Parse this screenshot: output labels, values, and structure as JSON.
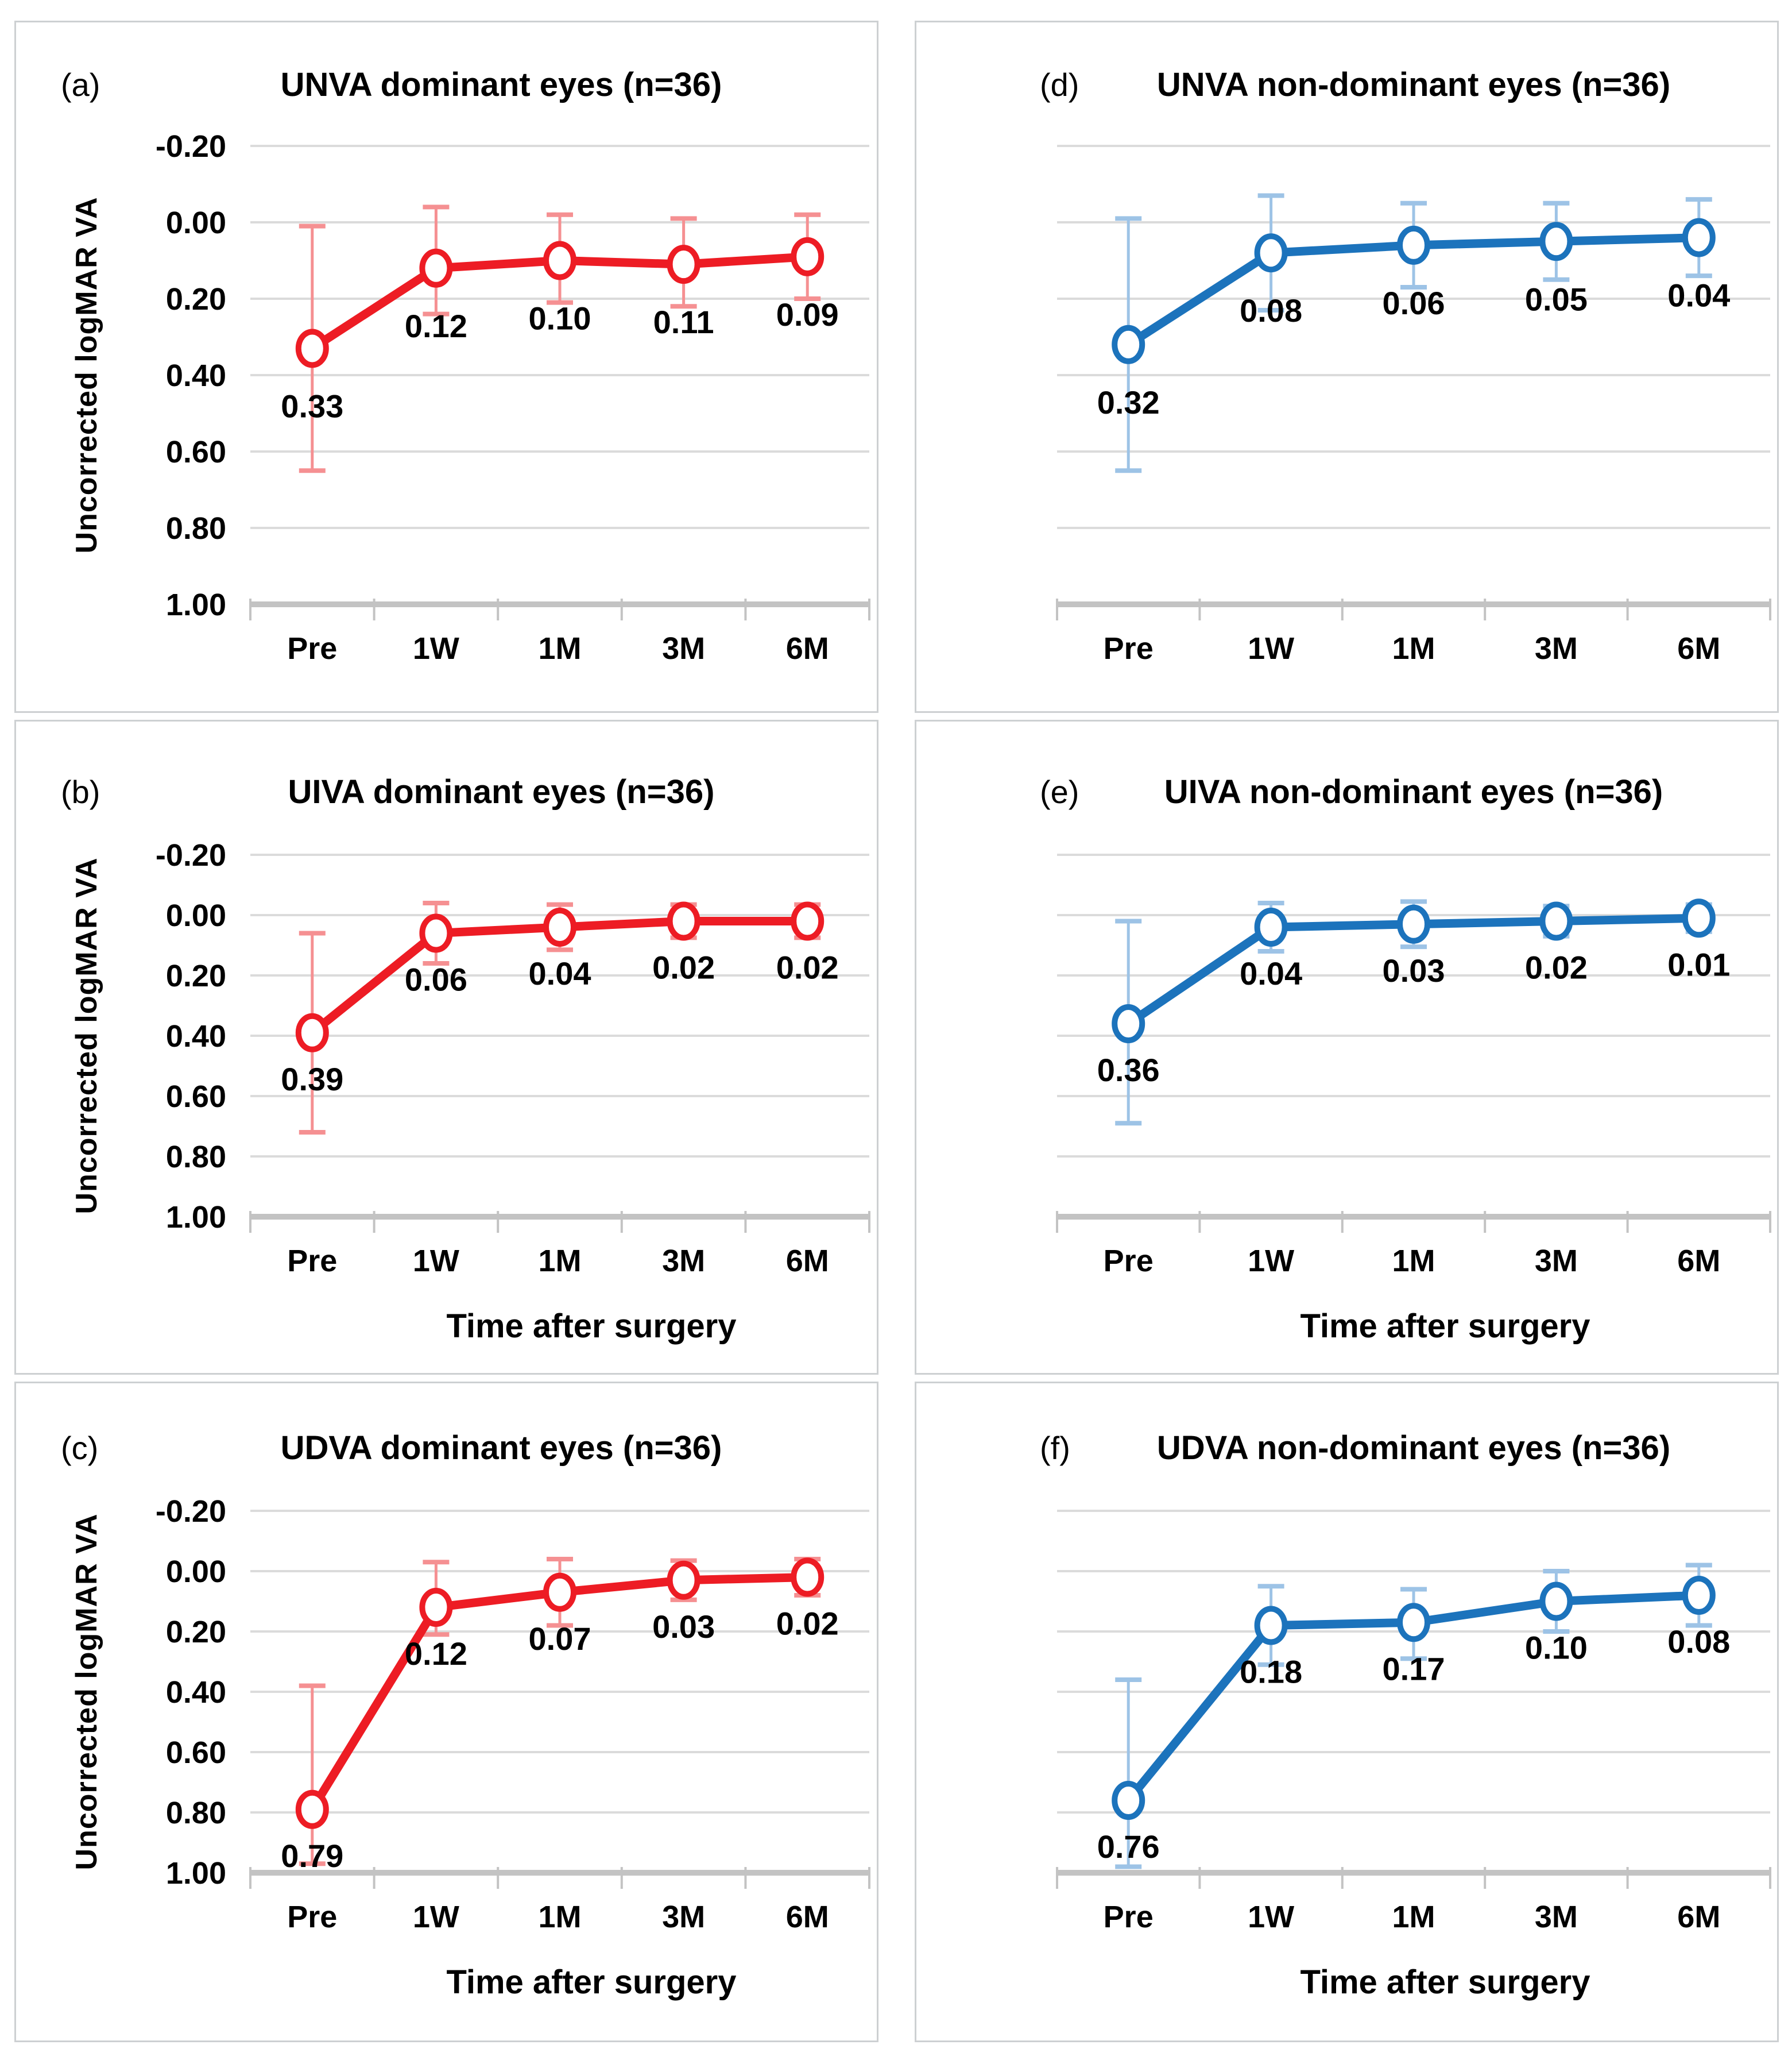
{
  "figure": {
    "y_axis_title": "Uncorrected logMAR VA",
    "x_axis_title": "Time after surgery",
    "categories": [
      "Pre",
      "1W",
      "1M",
      "3M",
      "6M"
    ],
    "y_tick_labels": [
      "-0.20",
      "0.00",
      "0.20",
      "0.40",
      "0.60",
      "0.80",
      "1.00"
    ],
    "colors": {
      "dominant_series": "#ED1C24",
      "dominant_error": "#F59092",
      "nondominant_series": "#1C73BC",
      "nondominant_error": "#9DC3E6",
      "gridline": "#DBDBDB",
      "axis": "#C3C3C3",
      "text": "#000000",
      "panel_border": "#CDD0D2"
    }
  },
  "chart_data": [
    {
      "panel": "(a)",
      "title": "UNVA dominant eyes (n=36)",
      "type": "line",
      "categories": [
        "Pre",
        "1W",
        "1M",
        "3M",
        "6M"
      ],
      "values": [
        0.33,
        0.12,
        0.1,
        0.11,
        0.09
      ],
      "data_labels": [
        "0.33",
        "0.12",
        "0.10",
        "0.11",
        "0.09"
      ],
      "err_up": [
        0.32,
        0.16,
        0.12,
        0.12,
        0.11
      ],
      "err_down": [
        0.32,
        0.12,
        0.11,
        0.11,
        0.11
      ],
      "series_color": "#ED1C24",
      "error_color": "#F59092",
      "ylabel": "Uncorrected logMAR VA",
      "xlabel": "",
      "y_tick_labels": [
        "-0.20",
        "0.00",
        "0.20",
        "0.40",
        "0.60",
        "0.80",
        "1.00"
      ],
      "ylim": [
        -0.2,
        1.0
      ],
      "y_axis_reversed": true,
      "grid": true,
      "legend": "none"
    },
    {
      "panel": "(b)",
      "title": "UIVA dominant eyes (n=36)",
      "type": "line",
      "categories": [
        "Pre",
        "1W",
        "1M",
        "3M",
        "6M"
      ],
      "values": [
        0.39,
        0.06,
        0.04,
        0.02,
        0.02
      ],
      "data_labels": [
        "0.39",
        "0.06",
        "0.04",
        "0.02",
        "0.02"
      ],
      "err_up": [
        0.33,
        0.1,
        0.075,
        0.055,
        0.055
      ],
      "err_down": [
        0.33,
        0.1,
        0.075,
        0.055,
        0.055
      ],
      "series_color": "#ED1C24",
      "error_color": "#F59092",
      "ylabel": "Uncorrected logMAR VA",
      "xlabel": "Time after surgery",
      "y_tick_labels": [
        "-0.20",
        "0.00",
        "0.20",
        "0.40",
        "0.60",
        "0.80",
        "1.00"
      ],
      "ylim": [
        -0.2,
        1.0
      ],
      "y_axis_reversed": true,
      "grid": true,
      "legend": "none"
    },
    {
      "panel": "(c)",
      "title": "UDVA dominant eyes (n=36)",
      "type": "line",
      "categories": [
        "Pre",
        "1W",
        "1M",
        "3M",
        "6M"
      ],
      "values": [
        0.79,
        0.12,
        0.07,
        0.03,
        0.02
      ],
      "data_labels": [
        "0.79",
        "0.12",
        "0.07",
        "0.03",
        "0.02"
      ],
      "err_up": [
        0.41,
        0.15,
        0.11,
        0.065,
        0.06
      ],
      "err_down": [
        0.18,
        0.09,
        0.11,
        0.065,
        0.06
      ],
      "series_color": "#ED1C24",
      "error_color": "#F59092",
      "ylabel": "Uncorrected logMAR VA",
      "xlabel": "Time after surgery",
      "y_tick_labels": [
        "-0.20",
        "0.00",
        "0.20",
        "0.40",
        "0.60",
        "0.80",
        "1.00"
      ],
      "ylim": [
        -0.2,
        1.0
      ],
      "y_axis_reversed": true,
      "grid": true,
      "legend": "none"
    },
    {
      "panel": "(d)",
      "title": "UNVA non-dominant eyes (n=36)",
      "type": "line",
      "categories": [
        "Pre",
        "1W",
        "1M",
        "3M",
        "6M"
      ],
      "values": [
        0.32,
        0.08,
        0.06,
        0.05,
        0.04
      ],
      "data_labels": [
        "0.32",
        "0.08",
        "0.06",
        "0.05",
        "0.04"
      ],
      "err_up": [
        0.33,
        0.15,
        0.11,
        0.1,
        0.1
      ],
      "err_down": [
        0.33,
        0.15,
        0.11,
        0.1,
        0.1
      ],
      "series_color": "#1C73BC",
      "error_color": "#9DC3E6",
      "ylabel": "",
      "xlabel": "",
      "y_tick_labels": [],
      "ylim": [
        -0.2,
        1.0
      ],
      "y_axis_reversed": true,
      "grid": true,
      "legend": "none"
    },
    {
      "panel": "(e)",
      "title": "UIVA non-dominant eyes (n=36)",
      "type": "line",
      "categories": [
        "Pre",
        "1W",
        "1M",
        "3M",
        "6M"
      ],
      "values": [
        0.36,
        0.04,
        0.03,
        0.02,
        0.01
      ],
      "data_labels": [
        "0.36",
        "0.04",
        "0.03",
        "0.02",
        "0.01"
      ],
      "err_up": [
        0.34,
        0.08,
        0.075,
        0.05,
        0.045
      ],
      "err_down": [
        0.33,
        0.08,
        0.075,
        0.05,
        0.045
      ],
      "series_color": "#1C73BC",
      "error_color": "#9DC3E6",
      "ylabel": "",
      "xlabel": "Time after surgery",
      "y_tick_labels": [],
      "ylim": [
        -0.2,
        1.0
      ],
      "y_axis_reversed": true,
      "grid": true,
      "legend": "none"
    },
    {
      "panel": "(f)",
      "title": "UDVA non-dominant eyes (n=36)",
      "type": "line",
      "categories": [
        "Pre",
        "1W",
        "1M",
        "3M",
        "6M"
      ],
      "values": [
        0.76,
        0.18,
        0.17,
        0.1,
        0.08
      ],
      "data_labels": [
        "0.76",
        "0.18",
        "0.17",
        "0.10",
        "0.08"
      ],
      "err_up": [
        0.4,
        0.13,
        0.11,
        0.1,
        0.1
      ],
      "err_down": [
        0.22,
        0.13,
        0.12,
        0.1,
        0.1
      ],
      "series_color": "#1C73BC",
      "error_color": "#9DC3E6",
      "ylabel": "",
      "xlabel": "Time after surgery",
      "y_tick_labels": [],
      "ylim": [
        -0.2,
        1.0
      ],
      "y_axis_reversed": true,
      "grid": true,
      "legend": "none"
    }
  ]
}
